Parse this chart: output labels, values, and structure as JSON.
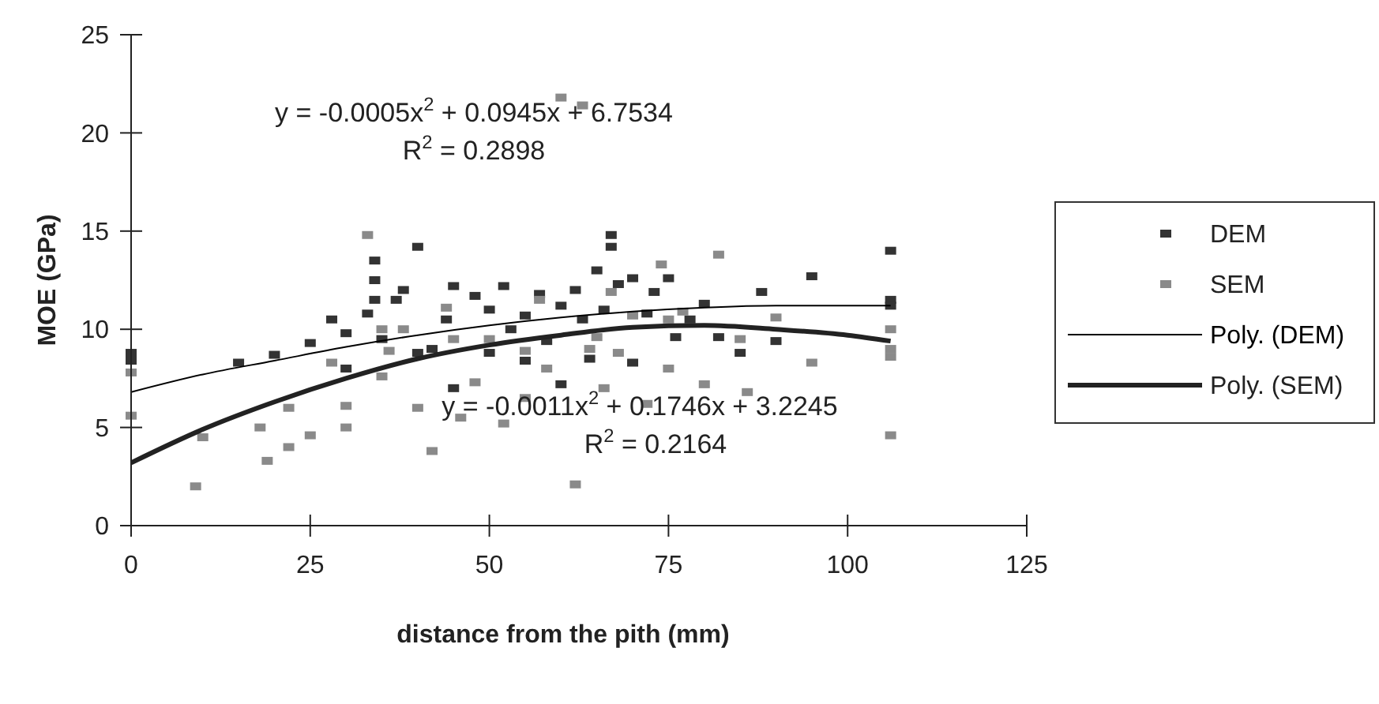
{
  "chart_data": {
    "type": "scatter",
    "xlabel": "distance from the pith (mm)",
    "ylabel": "MOE (GPa)",
    "xlim": [
      0,
      125
    ],
    "xticks": [
      0,
      25,
      50,
      75,
      100,
      125
    ],
    "ylim": [
      0,
      25
    ],
    "yticks": [
      0,
      5,
      10,
      15,
      20,
      25
    ],
    "marker": "square",
    "legend": "right",
    "grid": false,
    "series": [
      {
        "name": "DEM",
        "color": "#333333",
        "x": [
          0,
          0,
          15,
          20,
          25,
          28,
          30,
          33,
          34,
          34,
          34,
          35,
          37,
          38,
          40,
          42,
          44,
          45,
          48,
          50,
          52,
          53,
          55,
          57,
          58,
          60,
          62,
          63,
          65,
          66,
          67,
          67,
          68,
          70,
          72,
          73,
          75,
          76,
          78,
          80,
          82,
          85,
          88,
          90,
          95,
          106,
          106,
          106,
          60,
          55,
          45,
          50,
          40,
          30,
          64,
          70
        ],
        "values": [
          8.8,
          8.4,
          8.3,
          8.7,
          9.3,
          10.5,
          9.8,
          10.8,
          11.5,
          12.5,
          13.5,
          9.5,
          11.5,
          12,
          14.2,
          9,
          10.5,
          12.2,
          11.7,
          11,
          12.2,
          10,
          10.7,
          11.8,
          9.4,
          11.2,
          12,
          10.5,
          13,
          11,
          14.8,
          14.2,
          12.3,
          12.6,
          10.8,
          11.9,
          12.6,
          9.6,
          10.5,
          11.3,
          9.6,
          8.8,
          11.9,
          9.4,
          12.7,
          14,
          11.5,
          11.2,
          7.2,
          8.4,
          7,
          8.8,
          8.8,
          8,
          8.5,
          8.3
        ]
      },
      {
        "name": "SEM",
        "color": "#8a8a8a",
        "x": [
          0,
          0,
          10,
          9,
          18,
          19,
          22,
          22,
          25,
          28,
          30,
          33,
          35,
          36,
          38,
          40,
          42,
          44,
          46,
          48,
          50,
          52,
          55,
          57,
          60,
          63,
          62,
          64,
          66,
          67,
          70,
          72,
          74,
          75,
          77,
          80,
          82,
          85,
          86,
          90,
          95,
          106,
          106,
          106,
          106,
          45,
          55,
          65,
          35,
          75,
          58,
          68,
          30
        ],
        "values": [
          5.6,
          7.8,
          4.5,
          2,
          5,
          3.3,
          4,
          6,
          4.6,
          8.3,
          6.1,
          14.8,
          7.6,
          8.9,
          10,
          6,
          3.8,
          11.1,
          5.5,
          7.3,
          9.5,
          5.2,
          6.5,
          11.5,
          21.8,
          21.4,
          2.1,
          9,
          7,
          11.9,
          10.7,
          6.2,
          13.3,
          8,
          10.9,
          7.2,
          13.8,
          9.5,
          6.8,
          10.6,
          8.3,
          10,
          9,
          8.6,
          4.6,
          9.5,
          8.9,
          9.6,
          10,
          10.5,
          8,
          8.8,
          5
        ]
      },
      {
        "name": "Poly. (DEM)",
        "type": "line",
        "marker": "none",
        "color": "#000000",
        "x": [
          0,
          10,
          20,
          30,
          40,
          50,
          60,
          70,
          80,
          90,
          100,
          106
        ],
        "values": [
          6.8,
          7.7,
          8.4,
          9.1,
          9.7,
          10.2,
          10.6,
          10.9,
          11.1,
          11.2,
          11.2,
          11.2
        ]
      },
      {
        "name": "Poly. (SEM)",
        "type": "line",
        "marker": "none",
        "color": "#222222",
        "x": [
          0,
          10,
          20,
          30,
          40,
          50,
          60,
          70,
          80,
          90,
          100,
          106
        ],
        "values": [
          3.2,
          4.9,
          6.3,
          7.5,
          8.5,
          9.2,
          9.7,
          10.1,
          10.2,
          10,
          9.7,
          9.4
        ]
      }
    ],
    "annotations": [
      "y = -0.0005x$^{2}$ + 0.0945x + 6.7534",
      "R$^{2}$ = 0.2898",
      "y = -0.0011x$^{2}$ + 0.1746x + 3.2245",
      "R$^{2}$ = 0.2164"
    ]
  }
}
